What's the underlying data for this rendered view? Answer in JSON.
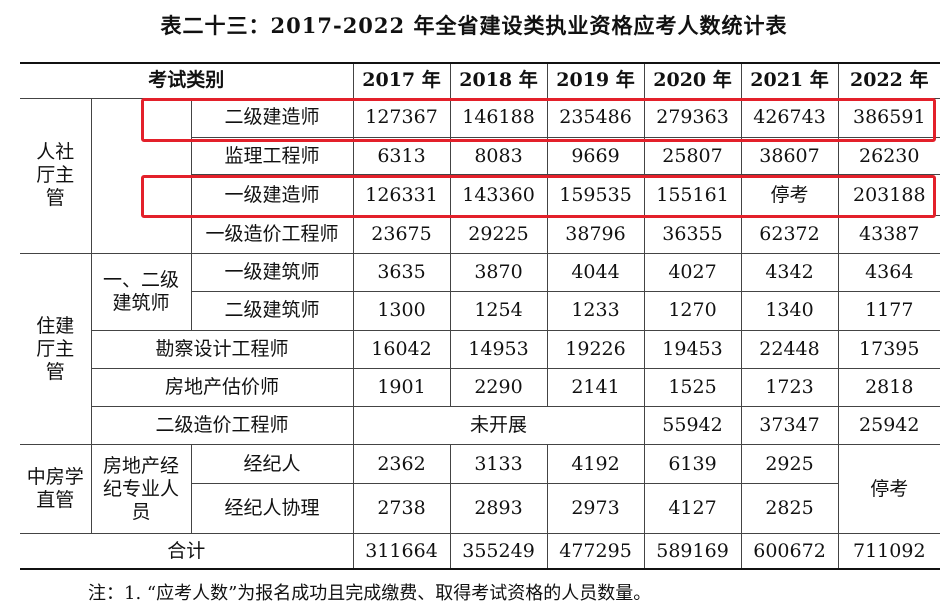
{
  "title": "表二十三：2017-2022 年全省建设类执业资格应考人数统计表",
  "header": {
    "category_label": "考试类别",
    "years": [
      "2017 年",
      "2018 年",
      "2019 年",
      "2020 年",
      "2021 年",
      "2022 年"
    ]
  },
  "groups": {
    "rensheting": "人社厅主管",
    "zhujianting": "住建厅主管",
    "zhongfangxue": "中房学直管"
  },
  "subgroups": {
    "architect": "一、二级建筑师",
    "broker": "房地产经纪专业人员"
  },
  "rows": {
    "erji_jianzaoshi": {
      "label": "二级建造师",
      "values": [
        "127367",
        "146188",
        "235486",
        "279363",
        "426743",
        "386591"
      ]
    },
    "jianli": {
      "label": "监理工程师",
      "values": [
        "6313",
        "8083",
        "9669",
        "25807",
        "38607",
        "26230"
      ]
    },
    "yiji_jianzaoshi": {
      "label": "一级建造师",
      "values": [
        "126331",
        "143360",
        "159535",
        "155161",
        "停考",
        "203188"
      ]
    },
    "yiji_zaojia": {
      "label": "一级造价工程师",
      "values": [
        "23675",
        "29225",
        "38796",
        "36355",
        "62372",
        "43387"
      ]
    },
    "yiji_jianzhushi": {
      "label": "一级建筑师",
      "values": [
        "3635",
        "3870",
        "4044",
        "4027",
        "4342",
        "4364"
      ]
    },
    "erji_jianzhushi": {
      "label": "二级建筑师",
      "values": [
        "1300",
        "1254",
        "1233",
        "1270",
        "1340",
        "1177"
      ]
    },
    "kancha": {
      "label": "勘察设计工程师",
      "values": [
        "16042",
        "14953",
        "19226",
        "19453",
        "22448",
        "17395"
      ]
    },
    "gujia": {
      "label": "房地产估价师",
      "values": [
        "1901",
        "2290",
        "2141",
        "1525",
        "1723",
        "2818"
      ]
    },
    "erji_zaojia": {
      "label": "二级造价工程师",
      "not_started": "未开展",
      "values": [
        "55942",
        "37347",
        "25942"
      ]
    },
    "jingjiren": {
      "label": "经纪人",
      "values": [
        "2362",
        "3133",
        "4192",
        "6139",
        "2925"
      ]
    },
    "xieli": {
      "label": "经纪人协理",
      "values": [
        "2738",
        "2893",
        "2973",
        "4127",
        "2825"
      ]
    },
    "broker_2022": "停考",
    "total": {
      "label": "合计",
      "values": [
        "311664",
        "355249",
        "477295",
        "589169",
        "600672",
        "711092"
      ]
    }
  },
  "note": "注：1. “应考人数”为报名成功且完成缴费、取得考试资格的人员数量。",
  "highlight_color": "#e3202a"
}
